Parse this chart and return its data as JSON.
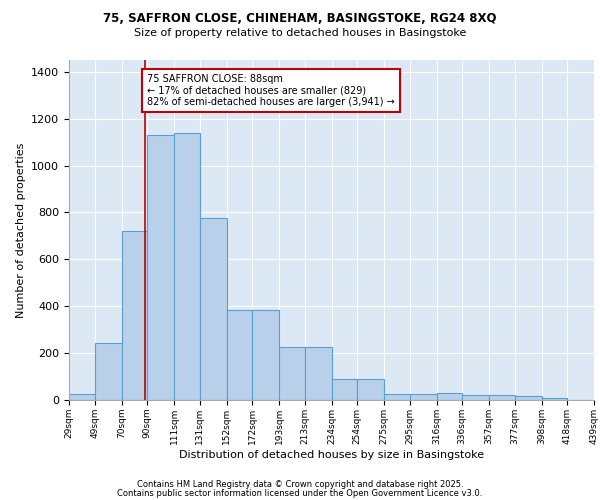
{
  "title1": "75, SAFFRON CLOSE, CHINEHAM, BASINGSTOKE, RG24 8XQ",
  "title2": "Size of property relative to detached houses in Basingstoke",
  "xlabel": "Distribution of detached houses by size in Basingstoke",
  "ylabel": "Number of detached properties",
  "bin_labels": [
    "29sqm",
    "49sqm",
    "70sqm",
    "90sqm",
    "111sqm",
    "131sqm",
    "152sqm",
    "172sqm",
    "193sqm",
    "213sqm",
    "234sqm",
    "254sqm",
    "275sqm",
    "295sqm",
    "316sqm",
    "336sqm",
    "357sqm",
    "377sqm",
    "398sqm",
    "418sqm",
    "439sqm"
  ],
  "bar_heights": [
    25,
    245,
    720,
    1130,
    1140,
    775,
    385,
    385,
    225,
    225,
    90,
    90,
    25,
    25,
    30,
    20,
    20,
    15,
    10,
    0
  ],
  "bar_color": "#b8d0ea",
  "bar_edge_color": "#5a9fd4",
  "background_color": "#dde8f5",
  "annotation_text": "75 SAFFRON CLOSE: 88sqm\n← 17% of detached houses are smaller (829)\n82% of semi-detached houses are larger (3,941) →",
  "vline_x": 88,
  "vline_color": "#c00000",
  "ylim": [
    0,
    1450
  ],
  "yticks": [
    0,
    200,
    400,
    600,
    800,
    1000,
    1200,
    1400
  ],
  "bin_edges": [
    29,
    49,
    70,
    90,
    111,
    131,
    152,
    172,
    193,
    213,
    234,
    254,
    275,
    295,
    316,
    336,
    357,
    377,
    398,
    418,
    439
  ],
  "footer1": "Contains HM Land Registry data © Crown copyright and database right 2025.",
  "footer2": "Contains public sector information licensed under the Open Government Licence v3.0."
}
